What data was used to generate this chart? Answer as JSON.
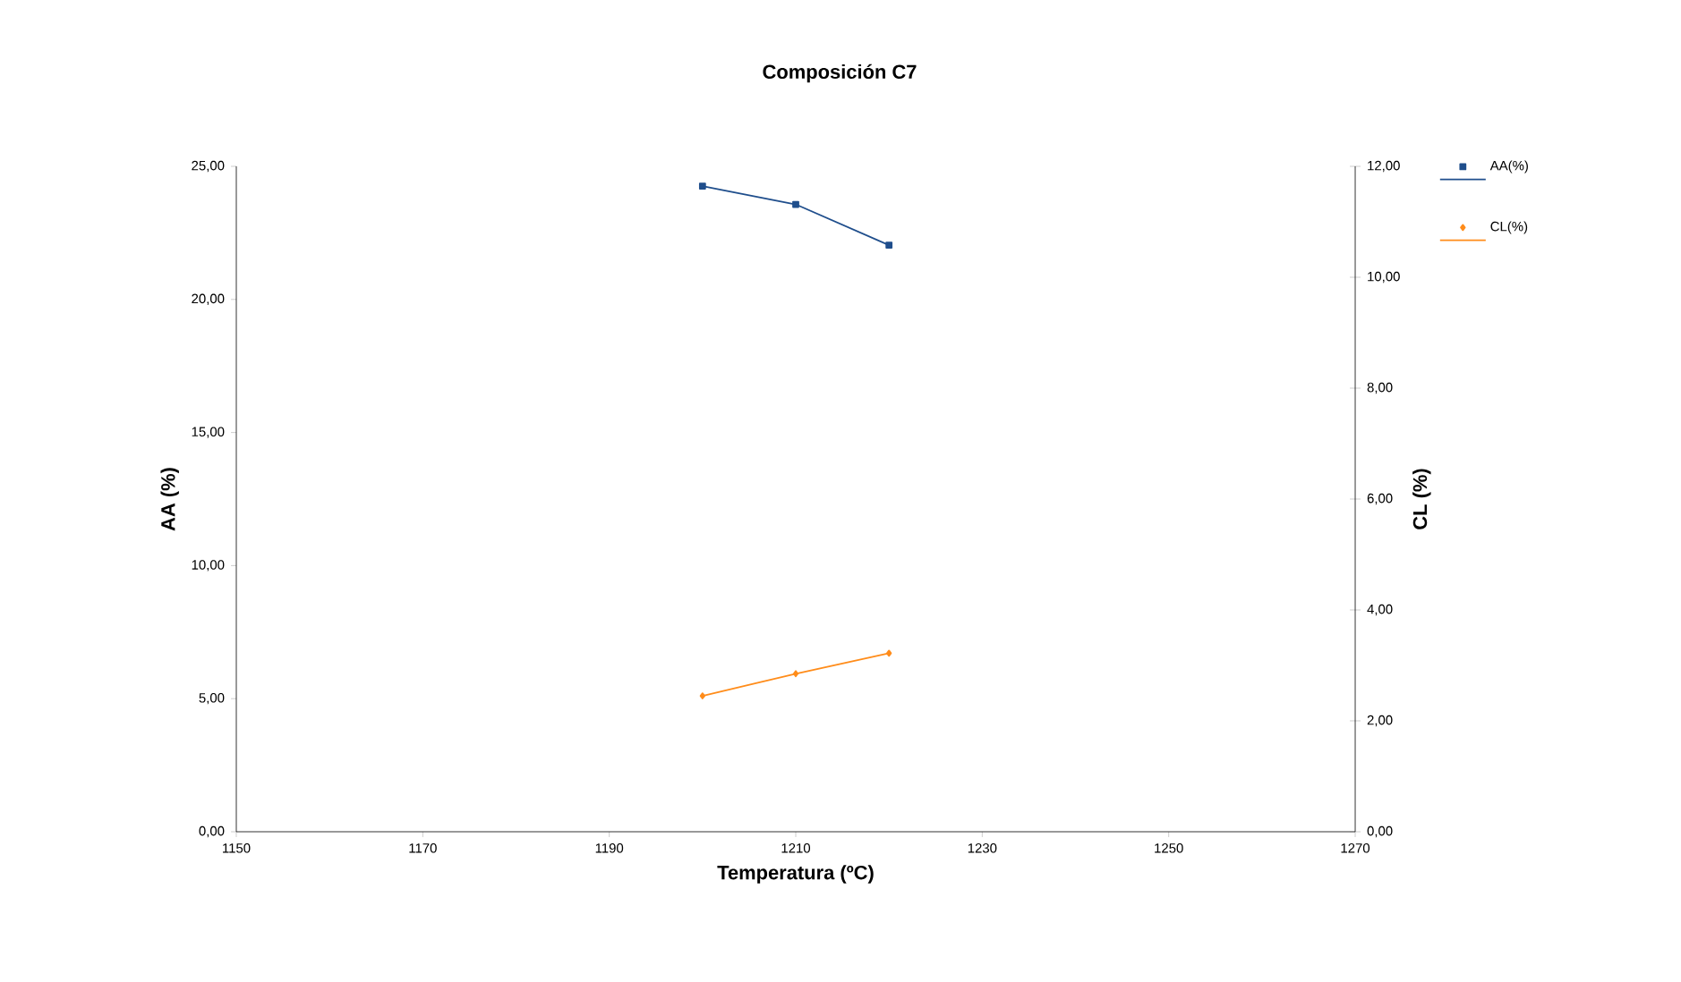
{
  "chart_data": {
    "type": "line",
    "title": "Composición C7",
    "xlabel": "Temperatura (ºC)",
    "ylabel": "AA (%)",
    "y2label": "CL (%)",
    "x": [
      1200,
      1210,
      1220
    ],
    "series": [
      {
        "name": "AA(%)",
        "color": "#1f4e8c",
        "marker": "square",
        "values": [
          24.26,
          23.57,
          22.04
        ]
      },
      {
        "name": "CL(%)",
        "color": "#ff8c1a",
        "marker": "diamond",
        "axis": "y2",
        "values": [
          2.45,
          2.85,
          3.22
        ]
      }
    ],
    "xlim": [
      1150,
      1270
    ],
    "xticks": [
      1150,
      1170,
      1190,
      1210,
      1230,
      1250,
      1270
    ],
    "ylim": [
      0,
      25
    ],
    "yticks": [
      {
        "value": 0,
        "label": "0,00"
      },
      {
        "value": 5,
        "label": "5,00"
      },
      {
        "value": 10,
        "label": "10,00"
      },
      {
        "value": 15,
        "label": "15,00"
      },
      {
        "value": 20,
        "label": "20,00"
      },
      {
        "value": 25,
        "label": "25,00"
      }
    ],
    "y2lim": [
      0,
      12
    ],
    "y2ticks": [
      {
        "value": 0,
        "label": "0,00"
      },
      {
        "value": 2,
        "label": "2,00"
      },
      {
        "value": 4,
        "label": "4,00"
      },
      {
        "value": 6,
        "label": "6,00"
      },
      {
        "value": 8,
        "label": "8,00"
      },
      {
        "value": 10,
        "label": "10,00"
      },
      {
        "value": 12,
        "label": "12,00"
      }
    ],
    "legend": "right",
    "grid": false
  }
}
